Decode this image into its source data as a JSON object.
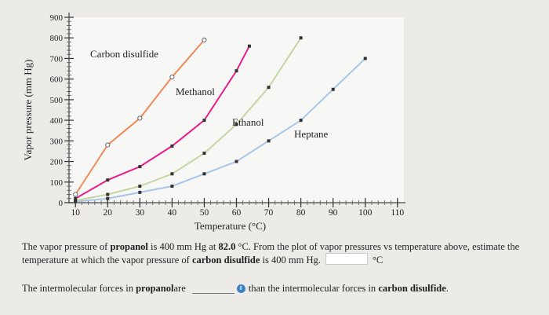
{
  "chart_data": {
    "type": "line",
    "xlabel": "Temperature (°C)",
    "ylabel": "Vapor pressure (mm Hg)",
    "xlim": [
      8,
      112
    ],
    "ylim": [
      0,
      900
    ],
    "xticks": [
      10,
      20,
      30,
      40,
      50,
      60,
      70,
      80,
      90,
      100,
      110
    ],
    "yticks": [
      0,
      100,
      200,
      300,
      400,
      500,
      600,
      700,
      800,
      900
    ],
    "grid": false,
    "series": [
      {
        "name": "Carbon disulfide",
        "color": "#ef8a5c",
        "x": [
          10,
          20,
          30,
          40,
          50
        ],
        "y": [
          40,
          280,
          410,
          610,
          790
        ]
      },
      {
        "name": "Methanol",
        "color": "#e91e8c",
        "x": [
          10,
          20,
          30,
          40,
          50,
          60,
          64
        ],
        "y": [
          20,
          110,
          175,
          275,
          400,
          640,
          760
        ]
      },
      {
        "name": "Ethanol",
        "color": "#c5d6a4",
        "x": [
          10,
          20,
          30,
          40,
          50,
          60,
          70,
          80
        ],
        "y": [
          10,
          40,
          80,
          140,
          240,
          380,
          560,
          800
        ]
      },
      {
        "name": "Heptane",
        "color": "#a9c6e8",
        "x": [
          10,
          20,
          30,
          40,
          50,
          60,
          70,
          80,
          90,
          100
        ],
        "y": [
          5,
          20,
          50,
          80,
          140,
          200,
          300,
          400,
          550,
          700
        ]
      }
    ]
  },
  "question1": {
    "part1": "The vapor pressure of ",
    "bold1": "propanol",
    "part2": " is 400 mm Hg at ",
    "bold2": "82.0",
    "part3": " °C. From the plot of vapor pressures vs temperature above, estimate the temperature at which the vapor pressure of ",
    "bold3": "carbon disulfide",
    "part4": " is 400 mm Hg.",
    "unit": "°C"
  },
  "question2": {
    "part1": "The intermolecular forces in ",
    "bold1": "propanol",
    "part2": " are",
    "part3": "than the intermolecular forces in ",
    "bold2": "carbon disulfide",
    "part4": "."
  },
  "icons": {
    "dropdown": "chevron-updown-icon"
  }
}
